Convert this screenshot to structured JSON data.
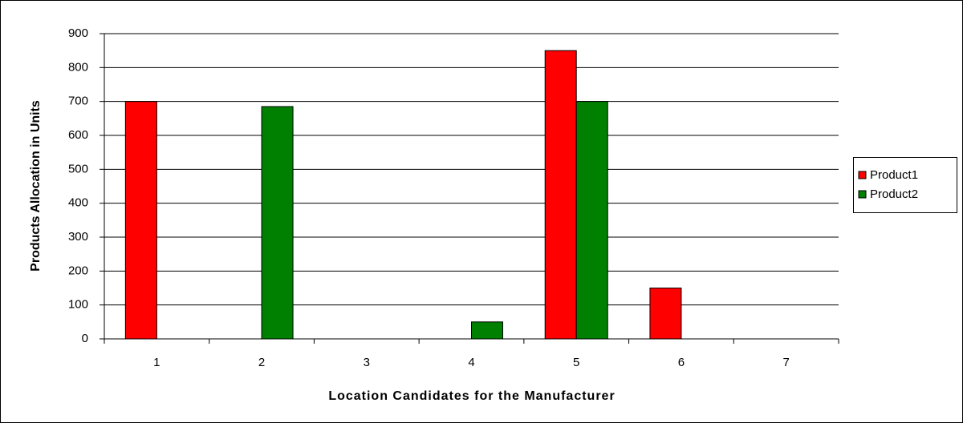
{
  "chart_data": {
    "type": "bar",
    "x_label": "Location Candidates for the Manufacturer",
    "y_label": "Products Allocation in Units",
    "categories": [
      "1",
      "2",
      "3",
      "4",
      "5",
      "6",
      "7"
    ],
    "series": [
      {
        "name": "Product1",
        "color": "#ff0000",
        "values": [
          700,
          0,
          0,
          0,
          850,
          150,
          0
        ]
      },
      {
        "name": "Product2",
        "color": "#008000",
        "values": [
          0,
          685,
          0,
          50,
          700,
          0,
          0
        ]
      }
    ],
    "ylim": [
      0,
      900
    ],
    "yticks": [
      0,
      100,
      200,
      300,
      400,
      500,
      600,
      700,
      800,
      900
    ],
    "grid": true,
    "legend": "right"
  }
}
